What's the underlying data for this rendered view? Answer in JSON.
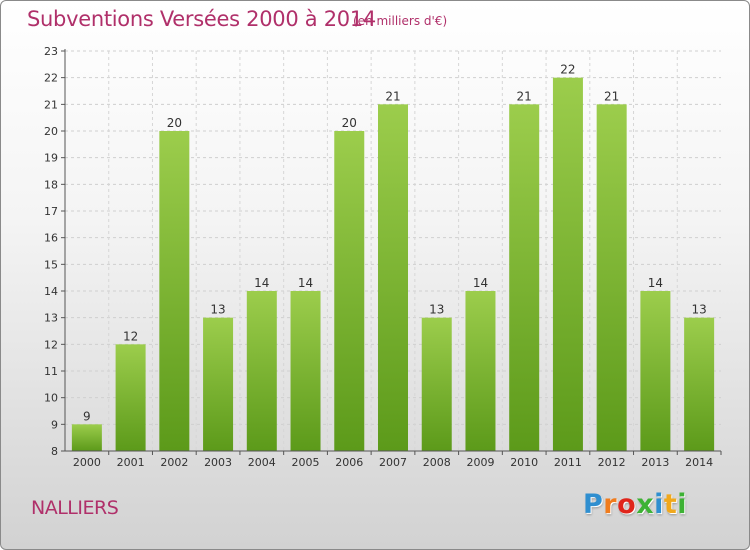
{
  "title": "Subventions Versées 2000 à 2014",
  "subtitle": "(en milliers d'€)",
  "place": "NALLIERS",
  "logo": {
    "letters": [
      {
        "ch": "P",
        "color": "#2f8fd0"
      },
      {
        "ch": "r",
        "color": "#f07c1d"
      },
      {
        "ch": "o",
        "color": "#e0251b"
      },
      {
        "ch": "x",
        "color": "#3db234"
      },
      {
        "ch": "i",
        "color": "#2f8fd0"
      },
      {
        "ch": "t",
        "color": "#f0a81d"
      },
      {
        "ch": "i",
        "color": "#3db234"
      }
    ]
  },
  "chart_data": {
    "type": "bar",
    "categories": [
      "2000",
      "2001",
      "2002",
      "2003",
      "2004",
      "2005",
      "2006",
      "2007",
      "2008",
      "2009",
      "2010",
      "2011",
      "2012",
      "2013",
      "2014"
    ],
    "values": [
      9,
      12,
      20,
      13,
      14,
      14,
      20,
      21,
      13,
      14,
      21,
      22,
      21,
      14,
      13
    ],
    "title": "Subventions Versées 2000 à 2014",
    "subtitle": "(en milliers d'€)",
    "ylim": [
      8,
      23
    ],
    "yticks": [
      8,
      9,
      10,
      11,
      12,
      13,
      14,
      15,
      16,
      17,
      18,
      19,
      20,
      21,
      22,
      23
    ],
    "grid": true,
    "bar_color_top": "#9ccd4c",
    "bar_color_bottom": "#5c9a1a"
  }
}
